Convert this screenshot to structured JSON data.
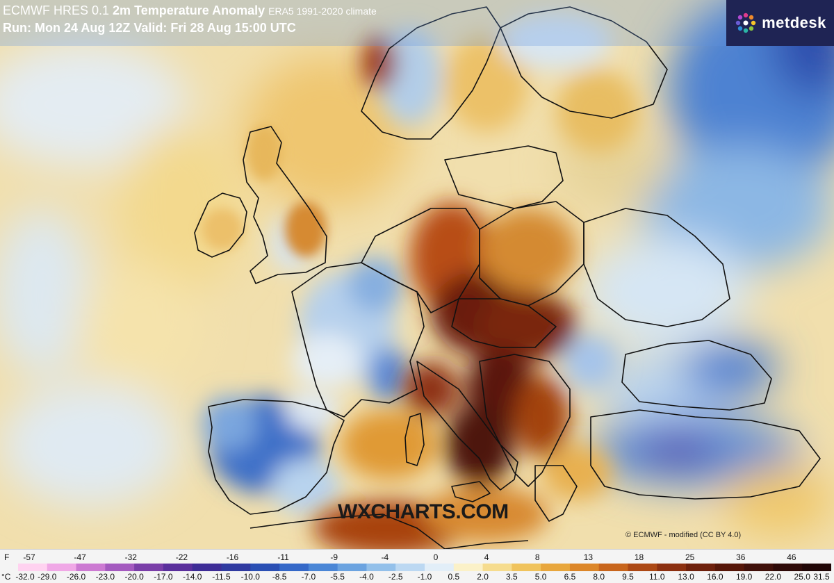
{
  "header": {
    "title_prefix": "ECMWF HRES 0.1",
    "title_main": "2m Temperature Anomaly",
    "title_climate": "ERA5 1991-2020 climate",
    "run_line": "Run: Mon 24 Aug 12Z Valid: Fri 28 Aug 15:00 UTC"
  },
  "logo": {
    "text": "metdesk",
    "icon": "metdesk-flower-icon"
  },
  "watermark": "WXCHARTS.COM",
  "copyright": "© ECMWF - modified (CC BY 4.0)",
  "legend": {
    "f_unit": "F",
    "c_unit": "°C",
    "f_ticks": [
      "-57",
      "-47",
      "-32",
      "-22",
      "-16",
      "-11",
      "-9",
      "-4",
      "0",
      "4",
      "8",
      "13",
      "18",
      "25",
      "36",
      "46"
    ],
    "c_ticks": [
      "-32.0",
      "-29.0",
      "-26.0",
      "-23.0",
      "-20.0",
      "-17.0",
      "-14.0",
      "-11.5",
      "-10.0",
      "-8.5",
      "-7.0",
      "-5.5",
      "-4.0",
      "-2.5",
      "-1.0",
      "0.5",
      "2.0",
      "3.5",
      "5.0",
      "6.5",
      "8.0",
      "9.5",
      "11.0",
      "13.0",
      "16.0",
      "19.0",
      "22.0",
      "25.0",
      "31.5"
    ],
    "colors": [
      "#ffd2f0",
      "#f0a8e6",
      "#cc7ad2",
      "#a45abf",
      "#7a3ea8",
      "#5a2f9c",
      "#3d2c96",
      "#2f3aa0",
      "#2a4fb4",
      "#3468c8",
      "#4a86d6",
      "#6ba3e0",
      "#93c0ea",
      "#bcd8f2",
      "#e2eef8",
      "#fbf1c8",
      "#f6dc8e",
      "#f0c35c",
      "#e8a63c",
      "#dc8628",
      "#c8651c",
      "#ac4814",
      "#8c3010",
      "#6e200c",
      "#561608",
      "#40100a",
      "#2e0a08",
      "#200606"
    ]
  }
}
